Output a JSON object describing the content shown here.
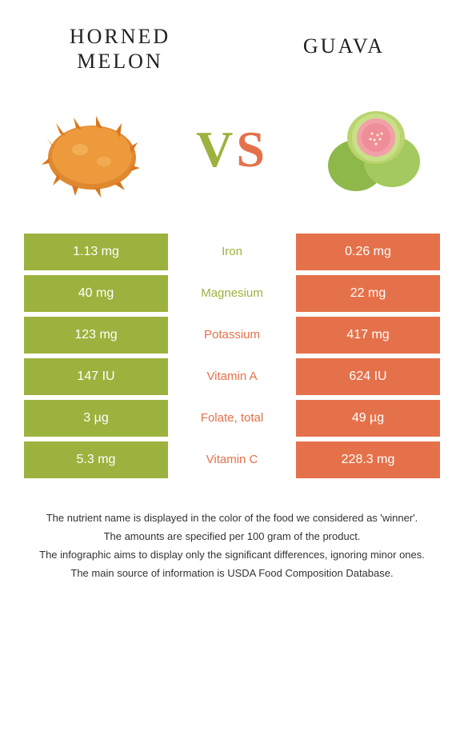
{
  "header": {
    "left_title": "HORNED MELON",
    "right_title": "GUAVA",
    "vs_v": "V",
    "vs_s": "S"
  },
  "colors": {
    "left": "#9cb23e",
    "right": "#e5714a",
    "background": "#ffffff",
    "text": "#333333"
  },
  "table": {
    "rows": [
      {
        "left": "1.13 mg",
        "label": "Iron",
        "winner": "left",
        "right": "0.26 mg"
      },
      {
        "left": "40 mg",
        "label": "Magnesium",
        "winner": "left",
        "right": "22 mg"
      },
      {
        "left": "123 mg",
        "label": "Potassium",
        "winner": "right",
        "right": "417 mg"
      },
      {
        "left": "147 IU",
        "label": "Vitamin A",
        "winner": "right",
        "right": "624 IU"
      },
      {
        "left": "3 µg",
        "label": "Folate, total",
        "winner": "right",
        "right": "49 µg"
      },
      {
        "left": "5.3 mg",
        "label": "Vitamin C",
        "winner": "right",
        "right": "228.3 mg"
      }
    ]
  },
  "footer": {
    "line1": "The nutrient name is displayed in the color of the food we considered as 'winner'.",
    "line2": "The amounts are specified per 100 gram of the product.",
    "line3": "The infographic aims to display only the significant differences, ignoring minor ones.",
    "line4": "The main source of information is USDA Food Composition Database."
  }
}
